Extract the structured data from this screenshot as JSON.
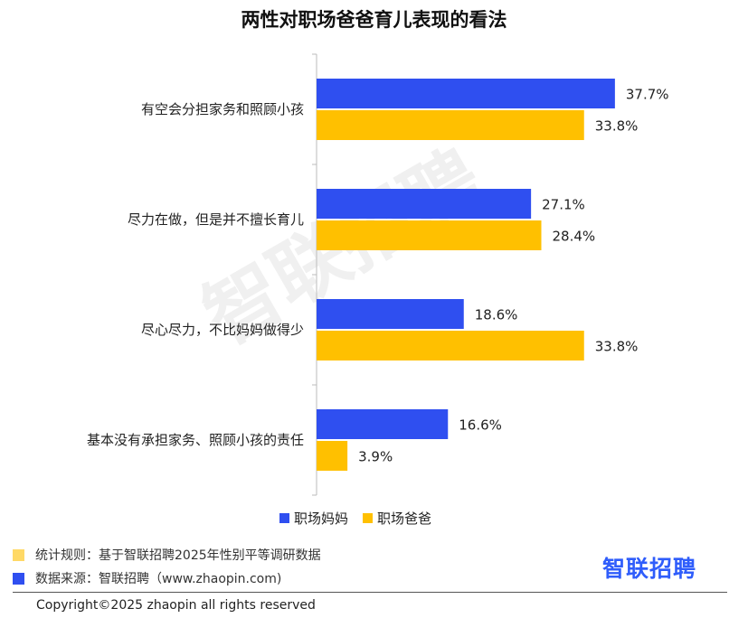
{
  "title": "两性对职场爸爸育儿表现的看法",
  "watermark": "智联招聘",
  "legend": {
    "mom": "职场妈妈",
    "dad": "职场爸爸"
  },
  "notes": {
    "rule": "统计规则：基于智联招聘2025年性别平等调研数据",
    "source": "数据来源：智联招聘（www.zhaopin.com)"
  },
  "brand": "智联招聘",
  "copyright": "Copyright©2025 zhaopin all rights reserved",
  "colors": {
    "mom": "#2f4ff0",
    "dad": "#ffc000",
    "rule_swatch": "#ffd966",
    "source_swatch": "#2f4ff0",
    "brand": "#2f5dfb"
  },
  "chart_data": {
    "type": "bar",
    "orientation": "horizontal",
    "title": "两性对职场爸爸育儿表现的看法",
    "categories": [
      "有空会分担家务和照顾小孩",
      "尽力在做，但是并不擅长育儿",
      "尽心尽力，不比妈妈做得少",
      "基本没有承担家务、照顾小孩的责任"
    ],
    "series": [
      {
        "name": "职场妈妈",
        "values": [
          37.7,
          27.1,
          18.6,
          16.6
        ],
        "labels": [
          "37.7%",
          "27.1%",
          "18.6%",
          "16.6%"
        ]
      },
      {
        "name": "职场爸爸",
        "values": [
          33.8,
          28.4,
          33.8,
          3.9
        ],
        "labels": [
          "33.8%",
          "28.4%",
          "33.8%",
          "3.9%"
        ]
      }
    ],
    "unit": "%",
    "legend_position": "bottom",
    "grid": false
  }
}
